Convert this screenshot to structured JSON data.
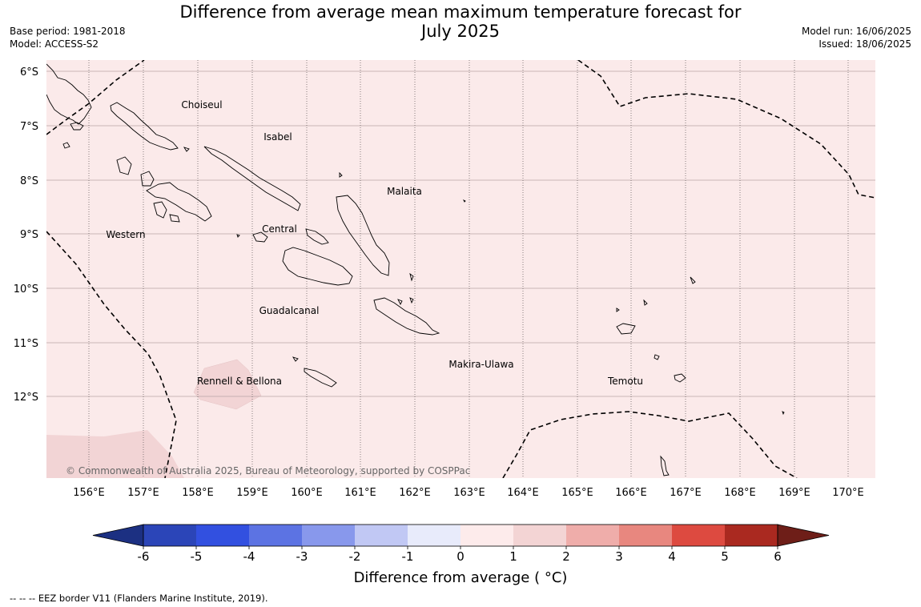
{
  "title_line1": "Difference from average mean maximum temperature forecast for",
  "title_line2": "July 2025",
  "base_period": "Base period: 1981-2018",
  "model": "Model: ACCESS-S2",
  "model_run": "Model run: 16/06/2025",
  "issued": "Issued: 18/06/2025",
  "map": {
    "lat_labels": [
      "6°S",
      "7°S",
      "8°S",
      "9°S",
      "10°S",
      "11°S",
      "12°S"
    ],
    "lon_labels": [
      "156°E",
      "157°E",
      "158°E",
      "159°E",
      "160°E",
      "161°E",
      "162°E",
      "163°E",
      "164°E",
      "165°E",
      "166°E",
      "167°E",
      "168°E",
      "169°E",
      "170°E"
    ],
    "regions": [
      "Choiseul",
      "Isabel",
      "Malaita",
      "Western",
      "Central",
      "Guadalcanal",
      "Makira-Ulawa",
      "Rennell & Bellona",
      "Temotu"
    ],
    "copyright": "© Commonwealth of Australia 2025, Bureau of Meteorology, supported by COSPPac",
    "background_anomaly_range": "0 to 1",
    "background_color": "#fbeaea",
    "warmer_patch_color": "#f2d4d5"
  },
  "colorbar": {
    "label": "Difference from average ( °C)",
    "ticks": [
      "-6",
      "-5",
      "-4",
      "-3",
      "-2",
      "-1",
      "0",
      "1",
      "2",
      "3",
      "4",
      "5",
      "6"
    ],
    "colors": [
      "#1c3082",
      "#2b45b8",
      "#3250e0",
      "#5c73e3",
      "#8898ec",
      "#c1c8f4",
      "#e8ebfb",
      "#fdebeb",
      "#f3d4d4",
      "#efadaa",
      "#e8877f",
      "#dd4a40",
      "#aa2920",
      "#6e1e18"
    ]
  },
  "footnote": "--  --  -- EEZ border V11 (Flanders Marine Institute, 2019)."
}
